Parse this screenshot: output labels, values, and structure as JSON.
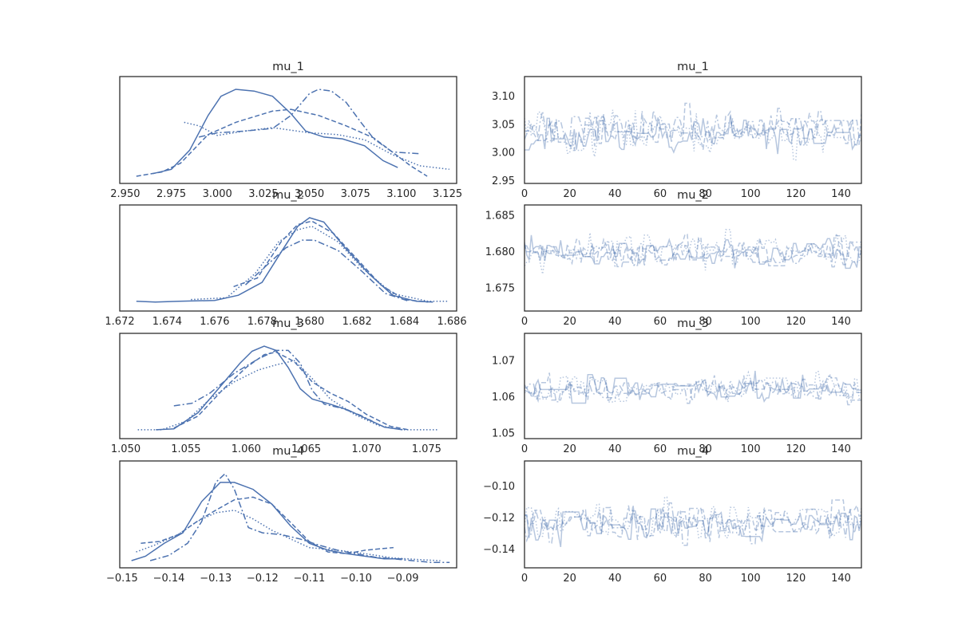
{
  "chart_data": [
    {
      "type": "line",
      "title": "mu_1",
      "xlabel": "",
      "ylabel": "",
      "xlim": [
        2.947,
        3.13
      ],
      "xticks": [
        2.95,
        2.975,
        3.0,
        3.025,
        3.05,
        3.075,
        3.1,
        3.125
      ],
      "xticklabels": [
        "2.950",
        "2.975",
        "3.000",
        "3.025",
        "3.050",
        "3.075",
        "3.100",
        "3.125"
      ],
      "yticklabels": [],
      "series": [
        {
          "style": "solid",
          "x": [
            2.965,
            2.975,
            2.985,
            2.995,
            3.002,
            3.01,
            3.02,
            3.03,
            3.04,
            3.048,
            3.058,
            3.068,
            3.08,
            3.09,
            3.098
          ],
          "y": [
            0.03,
            0.08,
            0.3,
            0.7,
            0.92,
            1.0,
            0.98,
            0.92,
            0.72,
            0.52,
            0.45,
            0.43,
            0.35,
            0.18,
            0.1
          ]
        },
        {
          "style": "dashed",
          "x": [
            2.956,
            2.97,
            2.98,
            2.995,
            3.01,
            3.03,
            3.04,
            3.055,
            3.07,
            3.085,
            3.095,
            3.105,
            3.114
          ],
          "y": [
            0.0,
            0.05,
            0.15,
            0.48,
            0.62,
            0.75,
            0.77,
            0.7,
            0.58,
            0.44,
            0.28,
            0.12,
            0.0
          ]
        },
        {
          "style": "dashdot",
          "x": [
            2.99,
            3.0,
            3.015,
            3.03,
            3.04,
            3.05,
            3.055,
            3.062,
            3.07,
            3.078,
            3.085,
            3.095,
            3.11
          ],
          "y": [
            0.45,
            0.5,
            0.52,
            0.55,
            0.7,
            0.95,
            1.0,
            0.98,
            0.85,
            0.62,
            0.43,
            0.28,
            0.26
          ]
        },
        {
          "style": "dotted",
          "x": [
            2.982,
            2.99,
            3.0,
            3.015,
            3.03,
            3.05,
            3.065,
            3.08,
            3.095,
            3.11,
            3.126
          ],
          "y": [
            0.62,
            0.58,
            0.47,
            0.52,
            0.56,
            0.5,
            0.48,
            0.42,
            0.25,
            0.12,
            0.08
          ]
        }
      ]
    },
    {
      "type": "line",
      "title": "mu_1",
      "xlabel": "",
      "ylabel": "",
      "xlim": [
        0,
        149
      ],
      "ylim": [
        2.945,
        3.135
      ],
      "xticks": [
        0,
        20,
        40,
        60,
        80,
        100,
        120,
        140
      ],
      "xticklabels": [
        "0",
        "20",
        "40",
        "60",
        "80",
        "100",
        "120",
        "140"
      ],
      "yticks": [
        2.95,
        3.0,
        3.05,
        3.1
      ],
      "yticklabels": [
        "2.95",
        "3.00",
        "3.05",
        "3.10"
      ],
      "n_draws": 150,
      "chains": [
        {
          "style": "solid",
          "center": 3.03,
          "spread": 0.03,
          "seed": 11
        },
        {
          "style": "dashed",
          "center": 3.04,
          "spread": 0.032,
          "seed": 23
        },
        {
          "style": "dashdot",
          "center": 3.045,
          "spread": 0.03,
          "seed": 37
        },
        {
          "style": "dotted",
          "center": 3.035,
          "spread": 0.035,
          "seed": 51
        }
      ]
    },
    {
      "type": "line",
      "title": "mu_2",
      "xlabel": "",
      "ylabel": "",
      "xlim": [
        1.672,
        1.6862
      ],
      "xticks": [
        1.672,
        1.674,
        1.676,
        1.678,
        1.68,
        1.682,
        1.684,
        1.686
      ],
      "xticklabels": [
        "1.672",
        "1.674",
        "1.676",
        "1.678",
        "1.680",
        "1.682",
        "1.684",
        "1.686"
      ],
      "yticklabels": [],
      "series": [
        {
          "style": "solid",
          "x": [
            1.6727,
            1.6735,
            1.6745,
            1.676,
            1.677,
            1.678,
            1.6788,
            1.6795,
            1.68,
            1.6806,
            1.6815,
            1.6825,
            1.6835,
            1.6845,
            1.6852
          ],
          "y": [
            0.03,
            0.02,
            0.03,
            0.04,
            0.1,
            0.25,
            0.6,
            0.9,
            1.0,
            0.95,
            0.65,
            0.35,
            0.1,
            0.03,
            0.02
          ]
        },
        {
          "style": "dashed",
          "x": [
            1.6768,
            1.6778,
            1.6788,
            1.6795,
            1.6801,
            1.681,
            1.682,
            1.683,
            1.684,
            1.685
          ],
          "y": [
            0.2,
            0.3,
            0.72,
            0.92,
            0.96,
            0.82,
            0.52,
            0.22,
            0.05,
            0.02
          ]
        },
        {
          "style": "dashdot",
          "x": [
            1.6773,
            1.6782,
            1.679,
            1.6797,
            1.6802,
            1.6812,
            1.6822,
            1.6832,
            1.6842
          ],
          "y": [
            0.22,
            0.45,
            0.65,
            0.74,
            0.74,
            0.62,
            0.38,
            0.12,
            0.03
          ]
        },
        {
          "style": "dotted",
          "x": [
            1.675,
            1.6765,
            1.6777,
            1.6787,
            1.6795,
            1.6801,
            1.6812,
            1.6822,
            1.6835,
            1.685,
            1.6858
          ],
          "y": [
            0.05,
            0.07,
            0.35,
            0.72,
            0.86,
            0.9,
            0.72,
            0.42,
            0.12,
            0.03,
            0.03
          ]
        }
      ]
    },
    {
      "type": "line",
      "title": "mu_2",
      "xlabel": "",
      "ylabel": "",
      "xlim": [
        0,
        149
      ],
      "ylim": [
        1.6718,
        1.6864
      ],
      "xticks": [
        0,
        20,
        40,
        60,
        80,
        100,
        120,
        140
      ],
      "xticklabels": [
        "0",
        "20",
        "40",
        "60",
        "80",
        "100",
        "120",
        "140"
      ],
      "yticks": [
        1.675,
        1.68,
        1.685
      ],
      "yticklabels": [
        "1.675",
        "1.680",
        "1.685"
      ],
      "n_draws": 150,
      "chains": [
        {
          "style": "solid",
          "center": 1.6797,
          "spread": 0.0018,
          "seed": 61
        },
        {
          "style": "dashed",
          "center": 1.6799,
          "spread": 0.0018,
          "seed": 73
        },
        {
          "style": "dashdot",
          "center": 1.6798,
          "spread": 0.0016,
          "seed": 89
        },
        {
          "style": "dotted",
          "center": 1.68,
          "spread": 0.002,
          "seed": 97
        }
      ]
    },
    {
      "type": "line",
      "title": "mu_3",
      "xlabel": "",
      "ylabel": "",
      "xlim": [
        1.0495,
        1.0775
      ],
      "xticks": [
        1.05,
        1.055,
        1.06,
        1.065,
        1.07,
        1.075
      ],
      "xticklabels": [
        "1.050",
        "1.055",
        "1.060",
        "1.065",
        "1.070",
        "1.075"
      ],
      "yticklabels": [],
      "series": [
        {
          "style": "solid",
          "x": [
            1.0525,
            1.054,
            1.056,
            1.058,
            1.0595,
            1.0605,
            1.0615,
            1.0625,
            1.0635,
            1.0645,
            1.0655,
            1.067,
            1.0685,
            1.07,
            1.0715,
            1.073
          ],
          "y": [
            0.02,
            0.03,
            0.22,
            0.55,
            0.8,
            0.94,
            1.0,
            0.95,
            0.75,
            0.5,
            0.38,
            0.32,
            0.25,
            0.15,
            0.05,
            0.02
          ]
        },
        {
          "style": "dashed",
          "x": [
            1.054,
            1.056,
            1.058,
            1.06,
            1.0615,
            1.0625,
            1.064,
            1.0655,
            1.067,
            1.0685,
            1.07,
            1.072,
            1.0735
          ],
          "y": [
            0.04,
            0.18,
            0.48,
            0.75,
            0.9,
            0.93,
            0.82,
            0.58,
            0.45,
            0.35,
            0.2,
            0.06,
            0.02
          ]
        },
        {
          "style": "dashdot",
          "x": [
            1.054,
            1.0555,
            1.057,
            1.059,
            1.061,
            1.0625,
            1.0635,
            1.0645,
            1.0655,
            1.0665,
            1.068,
            1.0695,
            1.0705
          ],
          "y": [
            0.3,
            0.33,
            0.45,
            0.68,
            0.85,
            0.95,
            0.95,
            0.8,
            0.48,
            0.32,
            0.27,
            0.19,
            0.12
          ]
        },
        {
          "style": "dotted",
          "x": [
            1.051,
            1.053,
            1.055,
            1.057,
            1.059,
            1.061,
            1.0625,
            1.064,
            1.0655,
            1.067,
            1.069,
            1.071,
            1.073,
            1.076
          ],
          "y": [
            0.02,
            0.02,
            0.12,
            0.38,
            0.58,
            0.72,
            0.78,
            0.83,
            0.62,
            0.38,
            0.2,
            0.07,
            0.02,
            0.02
          ]
        }
      ]
    },
    {
      "type": "line",
      "title": "mu_3",
      "xlabel": "",
      "ylabel": "",
      "xlim": [
        0,
        149
      ],
      "ylim": [
        1.0485,
        1.0775
      ],
      "xticks": [
        0,
        20,
        40,
        60,
        80,
        100,
        120,
        140
      ],
      "xticklabels": [
        "0",
        "20",
        "40",
        "60",
        "80",
        "100",
        "120",
        "140"
      ],
      "yticks": [
        1.05,
        1.06,
        1.07
      ],
      "yticklabels": [
        "1.05",
        "1.06",
        "1.07"
      ],
      "n_draws": 150,
      "chains": [
        {
          "style": "solid",
          "center": 1.062,
          "spread": 0.0035,
          "seed": 103
        },
        {
          "style": "dashed",
          "center": 1.0622,
          "spread": 0.0035,
          "seed": 113
        },
        {
          "style": "dashdot",
          "center": 1.0619,
          "spread": 0.003,
          "seed": 127
        },
        {
          "style": "dotted",
          "center": 1.0625,
          "spread": 0.004,
          "seed": 131
        }
      ]
    },
    {
      "type": "line",
      "title": "mu_4",
      "xlabel": "",
      "ylabel": "",
      "xlim": [
        -0.1505,
        -0.0785
      ],
      "xticks": [
        -0.15,
        -0.14,
        -0.13,
        -0.12,
        -0.11,
        -0.1,
        -0.09
      ],
      "xticklabels": [
        "−0.15",
        "−0.14",
        "−0.13",
        "−0.12",
        "−0.11",
        "−0.10",
        "−0.09"
      ],
      "yticklabels": [],
      "series": [
        {
          "style": "solid",
          "x": [
            -0.148,
            -0.145,
            -0.141,
            -0.137,
            -0.133,
            -0.129,
            -0.126,
            -0.122,
            -0.118,
            -0.114,
            -0.11,
            -0.106,
            -0.102,
            -0.098,
            -0.094,
            -0.09
          ],
          "y": [
            0.0,
            0.05,
            0.2,
            0.32,
            0.68,
            0.9,
            0.9,
            0.82,
            0.65,
            0.4,
            0.2,
            0.12,
            0.08,
            0.05,
            0.02,
            0.02
          ]
        },
        {
          "style": "dashed",
          "x": [
            -0.146,
            -0.142,
            -0.138,
            -0.134,
            -0.13,
            -0.126,
            -0.122,
            -0.118,
            -0.114,
            -0.11,
            -0.106,
            -0.102,
            -0.098,
            -0.092
          ],
          "y": [
            0.2,
            0.22,
            0.3,
            0.45,
            0.58,
            0.7,
            0.73,
            0.65,
            0.44,
            0.22,
            0.1,
            0.08,
            0.12,
            0.15
          ]
        },
        {
          "style": "dashdot",
          "x": [
            -0.144,
            -0.14,
            -0.136,
            -0.133,
            -0.13,
            -0.128,
            -0.126,
            -0.123,
            -0.12,
            -0.116,
            -0.112,
            -0.108,
            -0.104,
            -0.1,
            -0.096,
            -0.092,
            -0.088,
            -0.084,
            -0.08
          ],
          "y": [
            0.0,
            0.06,
            0.2,
            0.45,
            0.9,
            1.0,
            0.82,
            0.38,
            0.32,
            0.3,
            0.25,
            0.18,
            0.12,
            0.08,
            0.04,
            0.02,
            0.0,
            -0.02,
            -0.02
          ]
        },
        {
          "style": "dotted",
          "x": [
            -0.147,
            -0.143,
            -0.138,
            -0.134,
            -0.13,
            -0.126,
            -0.122,
            -0.118,
            -0.114,
            -0.11,
            -0.104,
            -0.098,
            -0.092,
            -0.086,
            -0.082
          ],
          "y": [
            0.1,
            0.18,
            0.3,
            0.45,
            0.55,
            0.58,
            0.48,
            0.35,
            0.25,
            0.15,
            0.12,
            0.08,
            0.03,
            0.01,
            0.0
          ]
        }
      ]
    },
    {
      "type": "line",
      "title": "mu_4",
      "xlabel": "",
      "ylabel": "",
      "xlim": [
        0,
        149
      ],
      "ylim": [
        -0.152,
        -0.084
      ],
      "xticks": [
        0,
        20,
        40,
        60,
        80,
        100,
        120,
        140
      ],
      "xticklabels": [
        "0",
        "20",
        "40",
        "60",
        "80",
        "100",
        "120",
        "140"
      ],
      "yticks": [
        -0.14,
        -0.12,
        -0.1
      ],
      "yticklabels": [
        "−0.14",
        "−0.12",
        "−0.10"
      ],
      "n_draws": 150,
      "chains": [
        {
          "style": "solid",
          "center": -0.125,
          "spread": 0.01,
          "seed": 137
        },
        {
          "style": "dashed",
          "center": -0.122,
          "spread": 0.011,
          "seed": 149
        },
        {
          "style": "dashdot",
          "center": -0.124,
          "spread": 0.01,
          "seed": 157
        },
        {
          "style": "dotted",
          "center": -0.121,
          "spread": 0.012,
          "seed": 163
        }
      ]
    }
  ],
  "colors": {
    "line": "#4C72B0",
    "axes": "#262626",
    "background": "#ffffff"
  }
}
